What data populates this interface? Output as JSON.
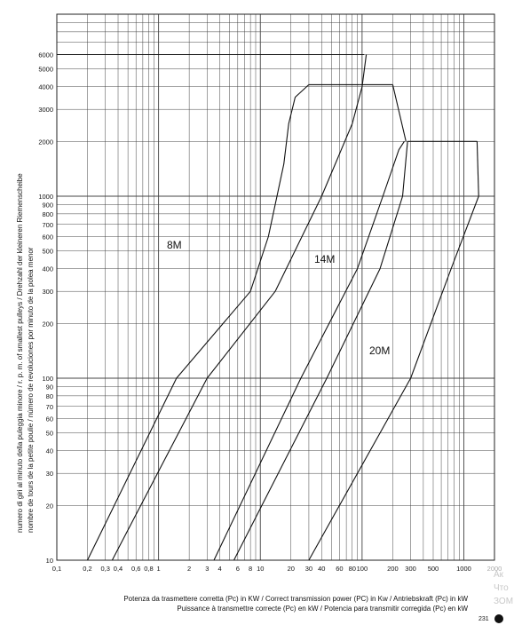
{
  "chart_data": {
    "type": "line",
    "xscale": "log",
    "yscale": "log",
    "xlim": [
      0.1,
      2000
    ],
    "ylim": [
      10,
      10000
    ],
    "x_ticks": [
      {
        "v": 0.1,
        "label": "0,1"
      },
      {
        "v": 0.2,
        "label": "0,2"
      },
      {
        "v": 0.3,
        "label": "0,3"
      },
      {
        "v": 0.4,
        "label": "0,4"
      },
      {
        "v": 0.6,
        "label": "0,6"
      },
      {
        "v": 0.8,
        "label": "0,8"
      },
      {
        "v": 1,
        "label": "1"
      },
      {
        "v": 2,
        "label": "2"
      },
      {
        "v": 3,
        "label": "3"
      },
      {
        "v": 4,
        "label": "4"
      },
      {
        "v": 6,
        "label": "6"
      },
      {
        "v": 8,
        "label": "8"
      },
      {
        "v": 10,
        "label": "10"
      },
      {
        "v": 20,
        "label": "20"
      },
      {
        "v": 30,
        "label": "30"
      },
      {
        "v": 40,
        "label": "40"
      },
      {
        "v": 60,
        "label": "60"
      },
      {
        "v": 80,
        "label": "80"
      },
      {
        "v": 100,
        "label": "100"
      },
      {
        "v": 200,
        "label": "200"
      },
      {
        "v": 300,
        "label": "300"
      },
      {
        "v": 500,
        "label": "500"
      },
      {
        "v": 1000,
        "label": "1000"
      },
      {
        "v": 2000,
        "label": "2000"
      }
    ],
    "y_ticks": [
      10,
      20,
      30,
      40,
      50,
      60,
      70,
      80,
      90,
      100,
      200,
      300,
      400,
      500,
      600,
      700,
      800,
      900,
      1000,
      2000,
      3000,
      4000,
      5000,
      6000
    ],
    "y_tick_labels": [
      "10",
      "20",
      "30",
      "40",
      "50",
      "60",
      "70",
      "80",
      "90",
      "100",
      "200",
      "300",
      "400",
      "500",
      "600",
      "700",
      "800",
      "900",
      "1000",
      "2000",
      "3000",
      "4000",
      "5000",
      "6000"
    ],
    "grid": true,
    "series": [
      {
        "name": "8M",
        "left_boundary": [
          [
            0.2,
            10
          ],
          [
            1.5,
            100
          ],
          [
            8,
            300
          ],
          [
            12,
            600
          ],
          [
            17,
            1500
          ],
          [
            19,
            2500
          ],
          [
            22,
            3500
          ],
          [
            30,
            4100
          ]
        ],
        "right_boundary": [
          [
            0.35,
            10
          ],
          [
            3,
            100
          ],
          [
            14,
            300
          ],
          [
            40,
            1000
          ],
          [
            80,
            2500
          ],
          [
            100,
            4000
          ],
          [
            110,
            6000
          ]
        ],
        "caps": [
          [
            [
              0.1,
              6000
            ],
            [
              105,
              6000
            ]
          ],
          [
            [
              30,
              4100
            ],
            [
              96,
              4100
            ]
          ]
        ]
      },
      {
        "name": "14M",
        "left_boundary": [
          [
            3.5,
            10
          ],
          [
            25,
            100
          ],
          [
            90,
            400
          ],
          [
            160,
            1000
          ],
          [
            230,
            1800
          ],
          [
            260,
            2000
          ]
        ],
        "right_boundary": [
          [
            5.5,
            10
          ],
          [
            45,
            100
          ],
          [
            150,
            400
          ],
          [
            250,
            1000
          ],
          [
            280,
            2000
          ]
        ],
        "caps": [
          [
            [
              96,
              4100
            ],
            [
              200,
              4100
            ]
          ],
          [
            [
              200,
              4100
            ],
            [
              270,
              2000
            ]
          ]
        ]
      },
      {
        "name": "20M",
        "left_boundary": [
          [
            30,
            10
          ],
          [
            300,
            100
          ],
          [
            750,
            400
          ],
          [
            1400,
            1000
          ]
        ],
        "right_boundary": [],
        "caps": [
          [
            [
              280,
              2000
            ],
            [
              1350,
              2000
            ]
          ],
          [
            [
              1350,
              2000
            ],
            [
              1400,
              1000
            ]
          ]
        ]
      }
    ],
    "annotations": [
      "8M",
      "14M",
      "20M"
    ]
  },
  "ylabel_lines": [
    "numero di giri al minuto della puleggia minore / r. p. m. of smallest pulleys / Drehzahl der kleineren Riemenscheibe",
    "nombre de tours de la petite poulie / número de revoluciones por minuto de la polea menor"
  ],
  "xlabel_lines": [
    "Potenza da trasmettere corretta (Pc) in KW / Correct transmission power (PC) in Kw / Antriebskraft (Pc) in kW",
    "Puissance à transmettre correcte (Pc) en kW / Potencia para transmitir corregida (Pc) en kW"
  ],
  "page_number": "231",
  "watermark": [
    "Ак",
    "Что",
    "ЗОМ"
  ]
}
